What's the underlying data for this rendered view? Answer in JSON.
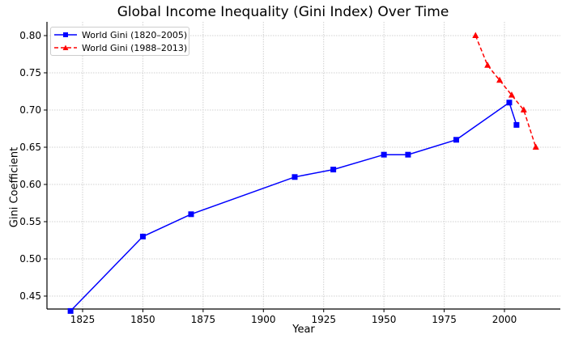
{
  "chart_data": {
    "type": "line",
    "title": "Global Income Inequality (Gini Index) Over Time",
    "xlabel": "Year",
    "ylabel": "Gini Coefficient",
    "xlim": [
      1812,
      2026
    ],
    "ylim": [
      0.415,
      0.815
    ],
    "xticks": [
      1825,
      1850,
      1875,
      1900,
      1925,
      1950,
      1975,
      2000
    ],
    "yticks": [
      0.45,
      0.5,
      0.55,
      0.6,
      0.65,
      0.7,
      0.75,
      0.8
    ],
    "grid": true,
    "legend_position": "upper left",
    "series": [
      {
        "name": "World Gini (1820–2005)",
        "color": "#0000ff",
        "line_style": "solid",
        "marker": "square",
        "x": [
          1820,
          1850,
          1870,
          1913,
          1929,
          1950,
          1960,
          1980,
          2002,
          2005
        ],
        "values": [
          0.43,
          0.53,
          0.56,
          0.61,
          0.62,
          0.64,
          0.64,
          0.66,
          0.71,
          0.68
        ]
      },
      {
        "name": "World Gini (1988–2013)",
        "color": "#ff0000",
        "line_style": "dashed",
        "marker": "triangle",
        "x": [
          1988,
          1993,
          1998,
          2003,
          2008,
          2013
        ],
        "values": [
          0.8,
          0.76,
          0.74,
          0.72,
          0.7,
          0.65
        ]
      }
    ]
  },
  "ytick_labels": [
    "0.45",
    "0.50",
    "0.55",
    "0.60",
    "0.65",
    "0.70",
    "0.75",
    "0.80"
  ],
  "xtick_labels": [
    "1825",
    "1850",
    "1875",
    "1900",
    "1925",
    "1950",
    "1975",
    "2000"
  ]
}
